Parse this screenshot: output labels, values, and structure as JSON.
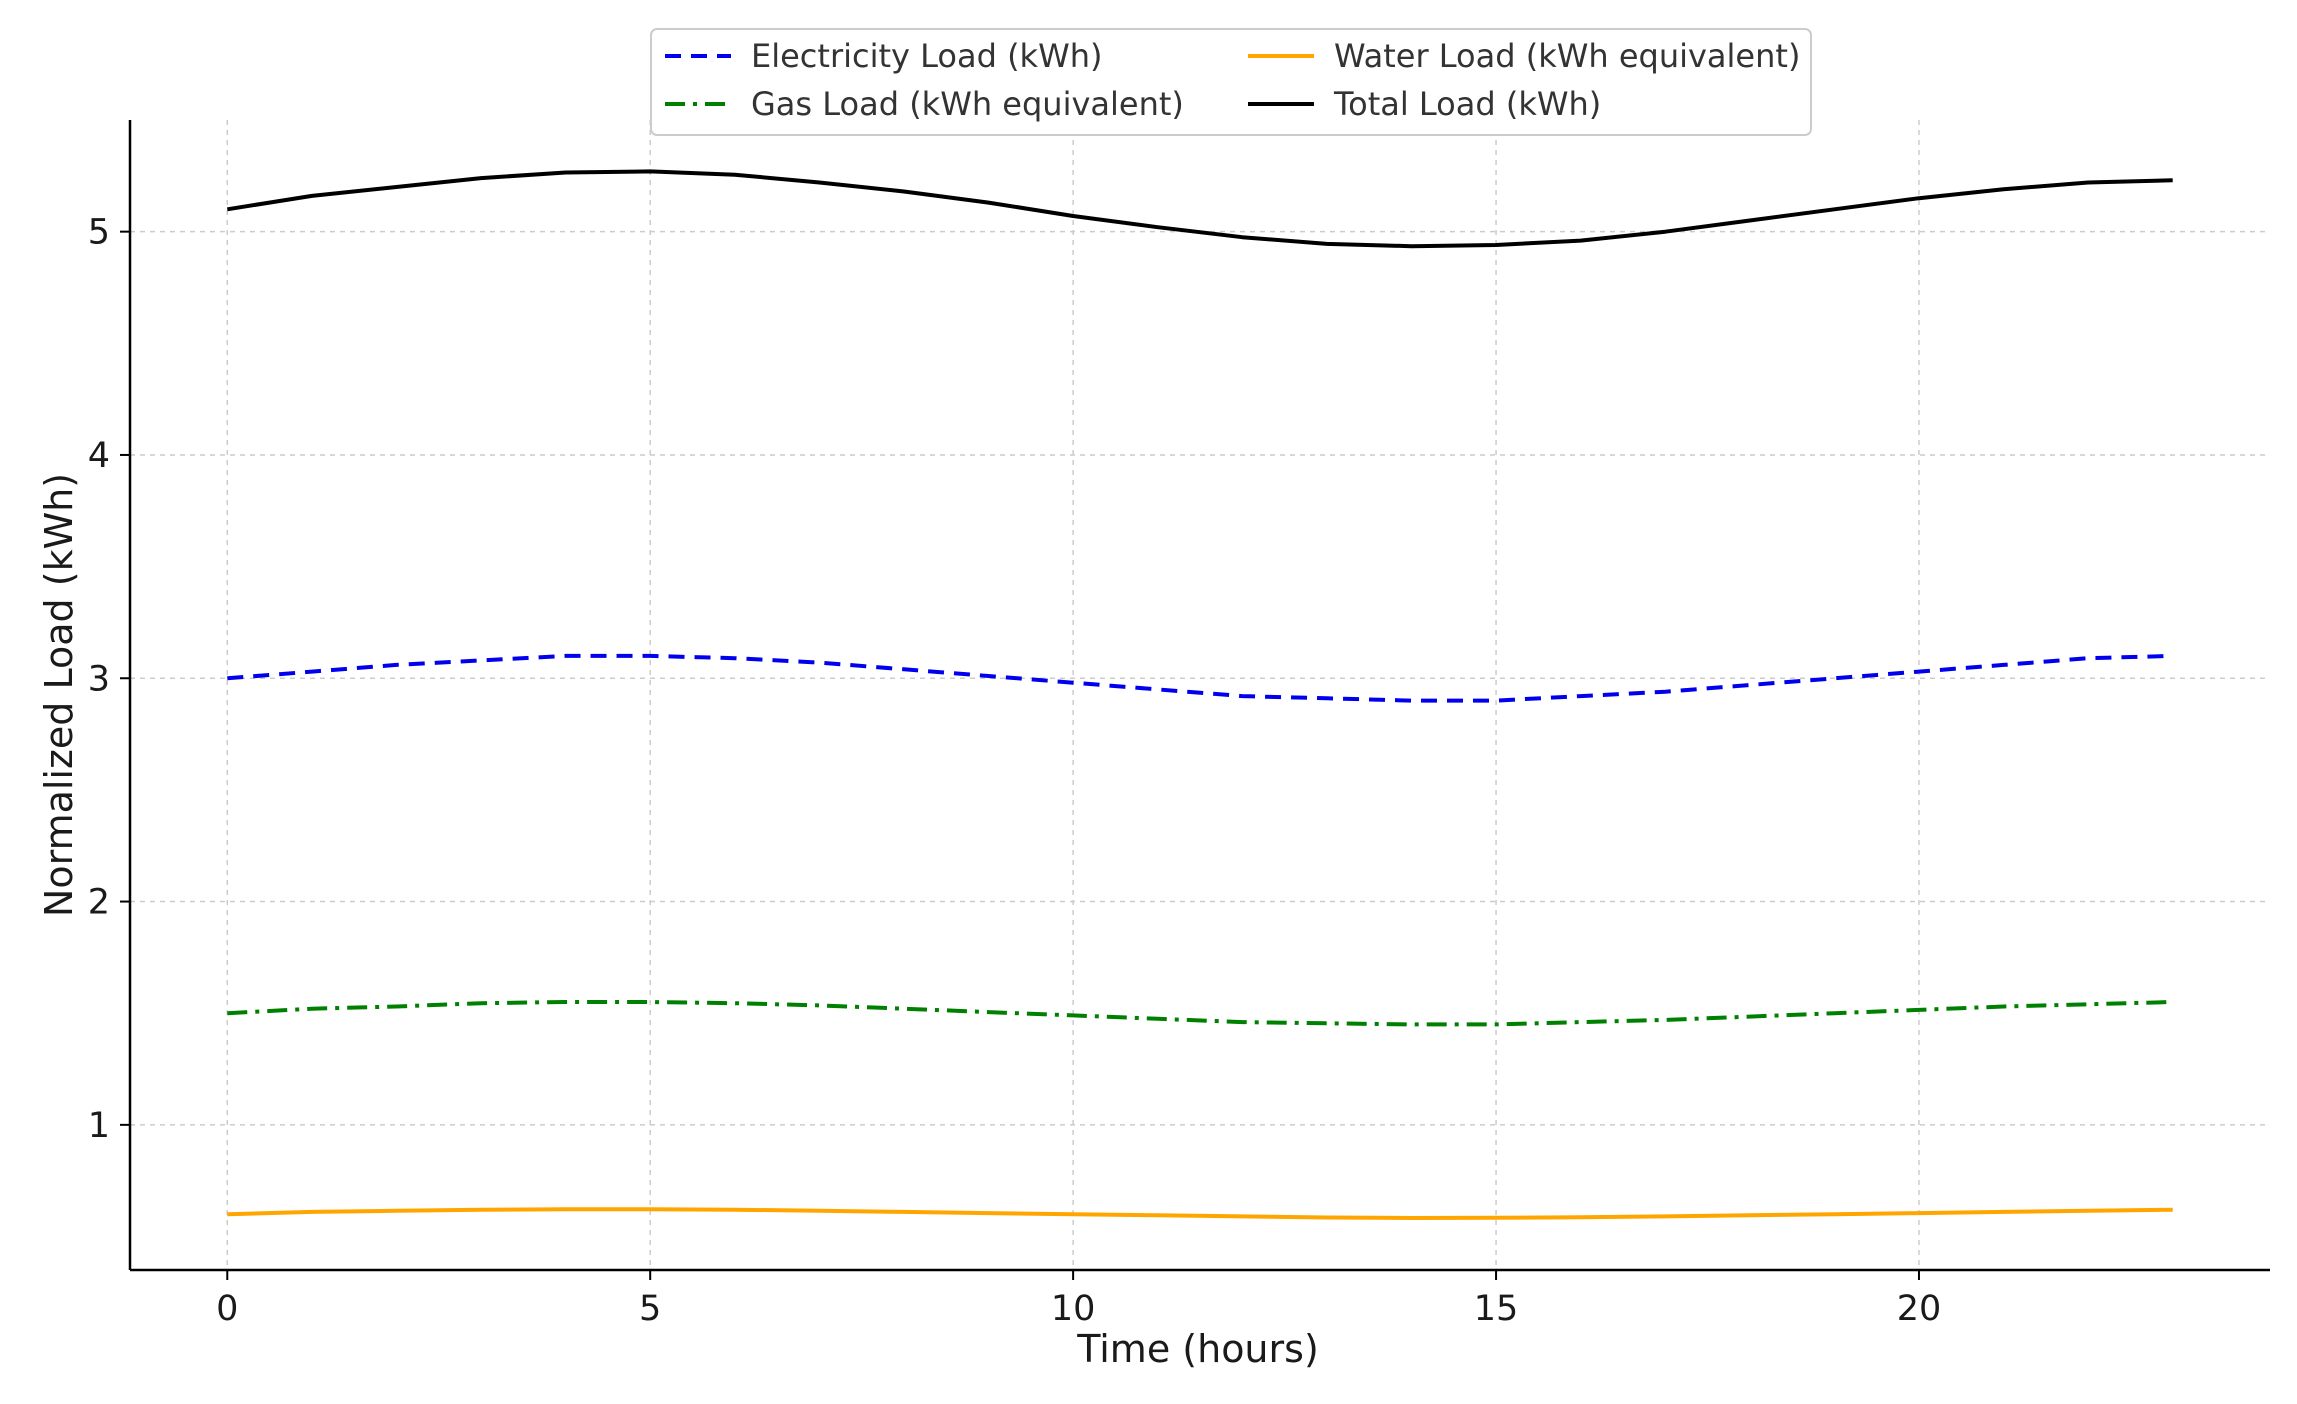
{
  "chart_data": {
    "type": "line",
    "title": "",
    "xlabel": "Time (hours)",
    "ylabel": "Normalized Load (kWh)",
    "xlim": [
      -1.15,
      24.15
    ],
    "ylim": [
      0.35,
      5.5
    ],
    "xticks": [
      0,
      5,
      10,
      15,
      20
    ],
    "yticks": [
      1,
      2,
      3,
      4,
      5
    ],
    "grid": true,
    "legend_position": "top-center",
    "x": [
      0,
      1,
      2,
      3,
      4,
      5,
      6,
      7,
      8,
      9,
      10,
      11,
      12,
      13,
      14,
      15,
      16,
      17,
      18,
      19,
      20,
      21,
      22,
      23
    ],
    "series": [
      {
        "name": "Electricity Load (kWh)",
        "color": "#0000ee",
        "dash": "dashed",
        "values": [
          3.0,
          3.03,
          3.06,
          3.08,
          3.1,
          3.1,
          3.09,
          3.07,
          3.04,
          3.01,
          2.98,
          2.95,
          2.92,
          2.91,
          2.9,
          2.9,
          2.92,
          2.94,
          2.97,
          3.0,
          3.03,
          3.06,
          3.09,
          3.1
        ]
      },
      {
        "name": "Water Load (kWh equivalent)",
        "color": "#ffa500",
        "dash": "solid",
        "values": [
          0.6,
          0.61,
          0.615,
          0.62,
          0.622,
          0.622,
          0.62,
          0.615,
          0.61,
          0.605,
          0.6,
          0.595,
          0.59,
          0.585,
          0.583,
          0.584,
          0.586,
          0.59,
          0.595,
          0.6,
          0.605,
          0.61,
          0.615,
          0.62
        ]
      },
      {
        "name": "Gas Load (kWh equivalent)",
        "color": "#008000",
        "dash": "dashdot",
        "values": [
          1.5,
          1.52,
          1.53,
          1.545,
          1.55,
          1.55,
          1.545,
          1.535,
          1.52,
          1.505,
          1.49,
          1.475,
          1.46,
          1.455,
          1.45,
          1.45,
          1.46,
          1.47,
          1.485,
          1.5,
          1.515,
          1.53,
          1.54,
          1.55
        ]
      },
      {
        "name": "Total Load (kWh)",
        "color": "#000000",
        "dash": "solid",
        "values": [
          5.1,
          5.16,
          5.2,
          5.24,
          5.265,
          5.27,
          5.255,
          5.22,
          5.18,
          5.13,
          5.07,
          5.02,
          4.975,
          4.945,
          4.935,
          4.94,
          4.96,
          5.0,
          5.05,
          5.1,
          5.15,
          5.19,
          5.22,
          5.23
        ]
      }
    ]
  }
}
